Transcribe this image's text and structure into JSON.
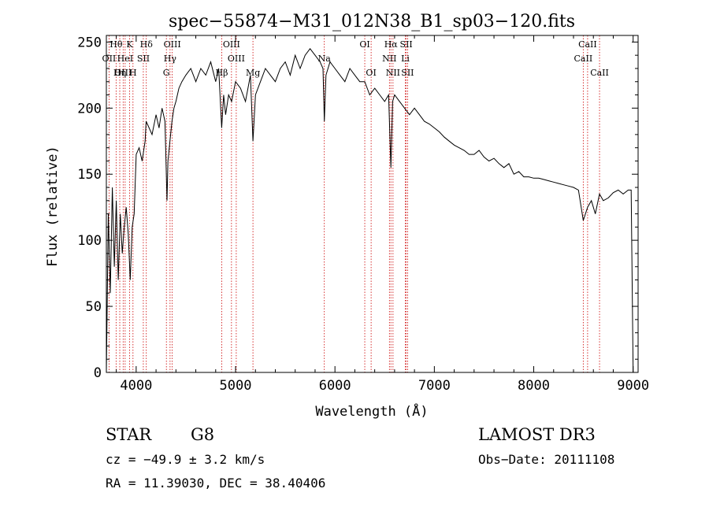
{
  "chart_data": {
    "type": "line",
    "title": "spec−55874−M31_012N38_B1_sp03−120.fits",
    "xlabel": "Wavelength (Å)",
    "ylabel": "Flux (relative)",
    "xlim": [
      3700,
      9050
    ],
    "ylim": [
      0,
      255
    ],
    "x_ticks": [
      4000,
      5000,
      6000,
      7000,
      8000,
      9000
    ],
    "y_ticks": [
      0,
      50,
      100,
      150,
      200,
      250
    ],
    "grid": false,
    "series": [
      {
        "name": "flux",
        "x": [
          3700,
          3720,
          3740,
          3760,
          3780,
          3800,
          3820,
          3840,
          3860,
          3880,
          3900,
          3920,
          3940,
          3960,
          3980,
          4000,
          4030,
          4060,
          4090,
          4100,
          4130,
          4160,
          4200,
          4230,
          4260,
          4290,
          4310,
          4320,
          4340,
          4360,
          4380,
          4400,
          4430,
          4460,
          4500,
          4550,
          4600,
          4650,
          4700,
          4750,
          4800,
          4830,
          4860,
          4880,
          4900,
          4930,
          4960,
          5000,
          5050,
          5100,
          5150,
          5175,
          5200,
          5250,
          5300,
          5350,
          5400,
          5450,
          5500,
          5550,
          5600,
          5650,
          5700,
          5750,
          5800,
          5850,
          5880,
          5893,
          5910,
          5950,
          6000,
          6050,
          6100,
          6150,
          6200,
          6250,
          6300,
          6350,
          6400,
          6450,
          6500,
          6540,
          6563,
          6580,
          6600,
          6650,
          6700,
          6750,
          6800,
          6850,
          6900,
          6950,
          7000,
          7050,
          7100,
          7150,
          7200,
          7250,
          7300,
          7350,
          7400,
          7450,
          7500,
          7550,
          7600,
          7650,
          7700,
          7750,
          7800,
          7850,
          7900,
          7950,
          8000,
          8050,
          8100,
          8150,
          8200,
          8250,
          8300,
          8350,
          8400,
          8450,
          8498,
          8542,
          8580,
          8620,
          8662,
          8700,
          8750,
          8800,
          8850,
          8900,
          8950,
          8980,
          9000
        ],
        "values": [
          0,
          120,
          60,
          140,
          80,
          130,
          70,
          120,
          90,
          110,
          125,
          105,
          70,
          110,
          120,
          165,
          170,
          160,
          175,
          190,
          185,
          180,
          195,
          185,
          200,
          190,
          130,
          160,
          175,
          190,
          200,
          205,
          215,
          220,
          225,
          230,
          220,
          230,
          225,
          235,
          220,
          230,
          185,
          210,
          195,
          210,
          205,
          220,
          215,
          205,
          225,
          175,
          210,
          220,
          230,
          225,
          220,
          230,
          235,
          225,
          240,
          230,
          240,
          245,
          240,
          235,
          230,
          190,
          225,
          235,
          230,
          225,
          220,
          230,
          225,
          220,
          220,
          210,
          215,
          210,
          205,
          210,
          155,
          205,
          210,
          205,
          200,
          195,
          200,
          195,
          190,
          188,
          185,
          182,
          178,
          175,
          172,
          170,
          168,
          165,
          165,
          168,
          163,
          160,
          162,
          158,
          155,
          158,
          150,
          152,
          148,
          148,
          147,
          147,
          146,
          145,
          144,
          143,
          142,
          141,
          140,
          138,
          115,
          125,
          130,
          120,
          135,
          130,
          132,
          136,
          138,
          135,
          138,
          138,
          0
        ]
      }
    ],
    "lines": [
      {
        "label": "Hθ",
        "x": 3798,
        "row": 1
      },
      {
        "label": "K",
        "x": 3934,
        "row": 1
      },
      {
        "label": "Hδ",
        "x": 4102,
        "row": 1
      },
      {
        "label": "OIII",
        "x": 4363,
        "row": 1
      },
      {
        "label": "OIII",
        "x": 4959,
        "row": 1
      },
      {
        "label": "OI",
        "x": 6300,
        "row": 1
      },
      {
        "label": "Hα",
        "x": 6563,
        "row": 1
      },
      {
        "label": "SII",
        "x": 6717,
        "row": 1
      },
      {
        "label": "CaII",
        "x": 8542,
        "row": 1
      },
      {
        "label": "OII",
        "x": 3727,
        "row": 2
      },
      {
        "label": "HeI",
        "x": 3889,
        "row": 2
      },
      {
        "label": "SII",
        "x": 4072,
        "row": 2
      },
      {
        "label": "Hγ",
        "x": 4341,
        "row": 2
      },
      {
        "label": "OIII",
        "x": 5007,
        "row": 2
      },
      {
        "label": "Na",
        "x": 5893,
        "row": 2
      },
      {
        "label": "NII",
        "x": 6548,
        "row": 2
      },
      {
        "label": "Li",
        "x": 6708,
        "row": 2
      },
      {
        "label": "CaII",
        "x": 8498,
        "row": 2
      },
      {
        "label": "OIII",
        "x": 3869,
        "row": 3
      },
      {
        "label": "Hη",
        "x": 3835,
        "row": 3
      },
      {
        "label": "H",
        "x": 3968,
        "row": 3
      },
      {
        "label": "G",
        "x": 4304,
        "row": 3
      },
      {
        "label": "Hβ",
        "x": 4861,
        "row": 3
      },
      {
        "label": "Mg",
        "x": 5175,
        "row": 3
      },
      {
        "label": "OI",
        "x": 6364,
        "row": 3
      },
      {
        "label": "NII",
        "x": 6584,
        "row": 3
      },
      {
        "label": "SII",
        "x": 6731,
        "row": 3
      },
      {
        "label": "CaII",
        "x": 8662,
        "row": 3
      }
    ]
  },
  "info": {
    "object_class": "STAR",
    "subclass": "G8",
    "survey": "LAMOST DR3",
    "redshift": "cz = −49.9 ± 3.2 km/s",
    "obs_date": "Obs−Date: 20111108",
    "coords": "RA =  11.39030, DEC =  38.40406"
  },
  "colors": {
    "axis": "#000000",
    "spectrum": "#000000",
    "line_marker": "#cc0000"
  }
}
